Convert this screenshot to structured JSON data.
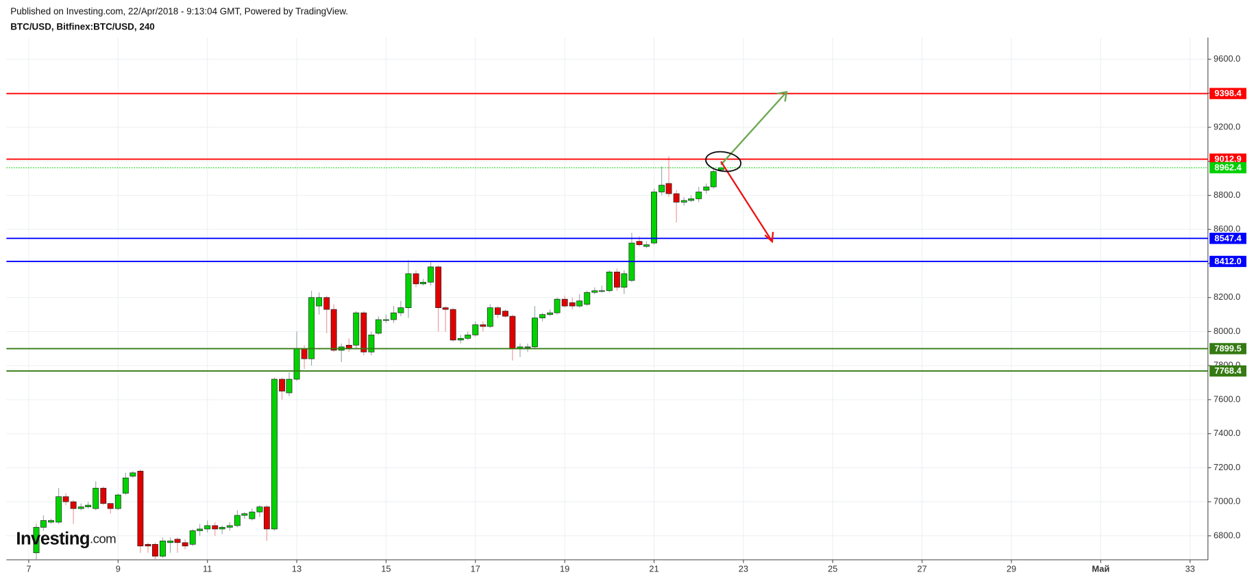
{
  "header": {
    "published": "Published on Investing.com, 22/Apr/2018 - 9:13:04 GMT, Powered by TradingView.",
    "symbol": "BTC/USD, Bitfinex:BTC/USD, 240"
  },
  "logo": {
    "brand": "Investing",
    "suffix": ".com"
  },
  "chart_data": {
    "type": "candlestick",
    "up_color": "#00d300",
    "down_color": "#e00000",
    "xlim": [
      6.5,
      33.4
    ],
    "xticks": [
      7,
      9,
      11,
      13,
      15,
      17,
      19,
      21,
      23,
      25,
      27,
      29,
      {
        "value": 31,
        "label": "Май"
      },
      33
    ],
    "ylim": [
      6659,
      9727
    ],
    "yticks": [
      {
        "value": 6800,
        "label": "6800.0"
      },
      {
        "value": 7000,
        "label": "7000.0"
      },
      {
        "value": 7200,
        "label": "7200.0"
      },
      {
        "value": 7400,
        "label": "7400.0"
      },
      {
        "value": 7600,
        "label": "7600.0"
      },
      {
        "value": 7800,
        "label": "7800.0"
      },
      {
        "value": 8000,
        "label": "8000.0"
      },
      {
        "value": 8200,
        "label": "8200.0"
      },
      {
        "value": 8400,
        "label": "8400.0"
      },
      {
        "value": 8600,
        "label": "8600.0"
      },
      {
        "value": 8800,
        "label": "8800.0"
      },
      {
        "value": 9000,
        "label": "9000.0"
      },
      {
        "value": 9200,
        "label": "9200.0"
      },
      {
        "value": 9400,
        "label": "9400.0"
      },
      {
        "value": 9600,
        "label": "9600.0"
      }
    ],
    "grid": true,
    "levels": [
      {
        "value": 9398.4,
        "color": "#ff0000"
      },
      {
        "value": 9012.9,
        "color": "#ff0000"
      },
      {
        "value": 8962.4,
        "color": "#00d000",
        "style": "dotted"
      },
      {
        "value": 8547.4,
        "color": "#0000ff"
      },
      {
        "value": 8412,
        "label": "8412.0",
        "color": "#0000ff"
      },
      {
        "value": 7899.5,
        "color": "#357a12"
      },
      {
        "value": 7768.4,
        "color": "#357a12"
      }
    ],
    "x": [
      7.17,
      7.33,
      7.5,
      7.67,
      7.83,
      8,
      8.17,
      8.33,
      8.5,
      8.67,
      8.83,
      9,
      9.17,
      9.33,
      9.5,
      9.67,
      9.83,
      10,
      10.17,
      10.33,
      10.5,
      10.67,
      10.83,
      11,
      11.17,
      11.33,
      11.5,
      11.67,
      11.83,
      12,
      12.17,
      12.33,
      12.5,
      12.67,
      12.83,
      13,
      13.17,
      13.33,
      13.5,
      13.67,
      13.83,
      14,
      14.17,
      14.33,
      14.5,
      14.67,
      14.83,
      15,
      15.17,
      15.33,
      15.5,
      15.67,
      15.83,
      16,
      16.17,
      16.33,
      16.5,
      16.67,
      16.83,
      17,
      17.17,
      17.33,
      17.5,
      17.67,
      17.83,
      18,
      18.17,
      18.33,
      18.5,
      18.67,
      18.83,
      19,
      19.17,
      19.33,
      19.5,
      19.67,
      19.83,
      20,
      20.17,
      20.33,
      20.5,
      20.67,
      20.83,
      21,
      21.17,
      21.33,
      21.5,
      21.67,
      21.83,
      22,
      22.17,
      22.33,
      22.5
    ],
    "open": [
      6700,
      6850,
      6880,
      6880,
      7030,
      7000,
      6960,
      6970,
      6960,
      7080,
      6990,
      6960,
      7050,
      7150,
      7180,
      6750,
      6750,
      6680,
      6760,
      6780,
      6760,
      6750,
      6830,
      6840,
      6860,
      6840,
      6850,
      6860,
      6920,
      6900,
      6940,
      6970,
      6840,
      7720,
      7640,
      7720,
      7900,
      7840,
      8150,
      8200,
      8130,
      7890,
      7920,
      7920,
      8110,
      7880,
      7990,
      8070,
      8070,
      8110,
      8140,
      8340,
      8280,
      8290,
      8380,
      8140,
      8130,
      7950,
      7960,
      7980,
      8040,
      8030,
      8140,
      8120,
      8090,
      7900,
      7910,
      7910,
      8080,
      8100,
      8110,
      8190,
      8170,
      8150,
      8160,
      8230,
      8240,
      8240,
      8350,
      8260,
      8300,
      8530,
      8500,
      8520,
      8820,
      8870,
      8810,
      8760,
      8770,
      8780,
      8830,
      8850,
      8950
    ],
    "high": [
      6870,
      6920,
      6900,
      7080,
      7050,
      7010,
      6990,
      7000,
      7120,
      7090,
      6990,
      7050,
      7170,
      7180,
      7190,
      6760,
      6760,
      6790,
      6790,
      6790,
      6780,
      6840,
      6870,
      6890,
      6880,
      6860,
      6880,
      6950,
      6940,
      6960,
      6980,
      6980,
      7730,
      7730,
      7760,
      8000,
      7920,
      8240,
      8230,
      8210,
      8160,
      7930,
      7960,
      8120,
      8120,
      8000,
      8090,
      8100,
      8150,
      8180,
      8420,
      8360,
      8310,
      8410,
      8390,
      8150,
      8140,
      7980,
      8000,
      8060,
      8060,
      8160,
      8150,
      8130,
      8100,
      7930,
      7930,
      8150,
      8110,
      8130,
      8200,
      8210,
      8200,
      8220,
      8240,
      8260,
      8270,
      8360,
      8370,
      8360,
      8580,
      8560,
      8530,
      8840,
      8970,
      9030,
      8830,
      8790,
      8800,
      8850,
      8870,
      8960,
      8970
    ],
    "low": [
      6660,
      6830,
      6870,
      6870,
      6980,
      6870,
      6950,
      6960,
      6950,
      6980,
      6930,
      6950,
      7040,
      7140,
      6700,
      6700,
      6660,
      6670,
      6700,
      6700,
      6720,
      6740,
      6800,
      6820,
      6800,
      6810,
      6830,
      6850,
      6900,
      6890,
      6910,
      6770,
      6830,
      7600,
      7620,
      7710,
      7780,
      7800,
      8100,
      7990,
      7880,
      7820,
      7880,
      7900,
      7860,
      7860,
      7980,
      8050,
      8050,
      8090,
      8080,
      8260,
      8270,
      8270,
      8000,
      8000,
      7940,
      7930,
      7950,
      7970,
      8000,
      8020,
      8080,
      8080,
      7830,
      7850,
      7880,
      7900,
      8060,
      8090,
      8100,
      8140,
      8130,
      8140,
      8150,
      8220,
      8230,
      8230,
      8240,
      8220,
      8290,
      8500,
      8490,
      8510,
      8800,
      8790,
      8640,
      8740,
      8760,
      8760,
      8810,
      8840,
      8940
    ],
    "close": [
      6850,
      6890,
      6890,
      7030,
      7000,
      6960,
      6970,
      6980,
      7080,
      6990,
      6960,
      7040,
      7140,
      7170,
      6740,
      6740,
      6680,
      6770,
      6770,
      6760,
      6740,
      6830,
      6840,
      6860,
      6840,
      6850,
      6860,
      6920,
      6930,
      6940,
      6970,
      6840,
      7720,
      7650,
      7720,
      7900,
      7840,
      8200,
      8200,
      8130,
      7890,
      7910,
      7900,
      8110,
      7880,
      7980,
      8070,
      8070,
      8110,
      8140,
      8340,
      8280,
      8290,
      8380,
      8140,
      8130,
      7950,
      7960,
      7980,
      8040,
      8030,
      8140,
      8100,
      8090,
      7900,
      7910,
      7910,
      8080,
      8100,
      8110,
      8190,
      8150,
      8150,
      8180,
      8230,
      8240,
      8240,
      8350,
      8260,
      8340,
      8520,
      8510,
      8510,
      8820,
      8860,
      8810,
      8760,
      8770,
      8780,
      8820,
      8850,
      8940,
      8962.4
    ]
  }
}
